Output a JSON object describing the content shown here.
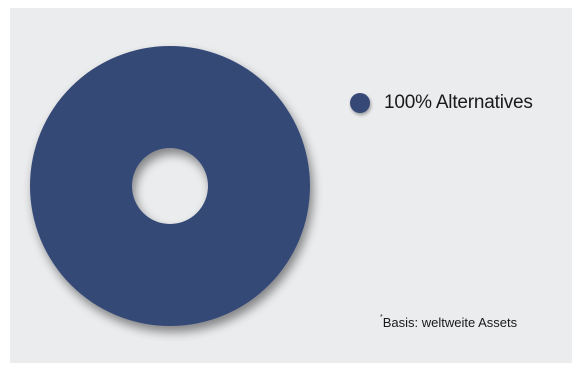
{
  "chart_data": {
    "type": "pie",
    "style": "donut",
    "categories": [
      "Alternatives"
    ],
    "values": [
      100
    ],
    "value_labels": [
      "100% Alternatives"
    ],
    "legend_position": "right",
    "colors": [
      "#354876"
    ],
    "title": "",
    "footnote": {
      "marker": "*",
      "text": "Basis: weltweite Assets"
    }
  },
  "colors": {
    "background": "#ebecee",
    "slice": "#354876"
  }
}
